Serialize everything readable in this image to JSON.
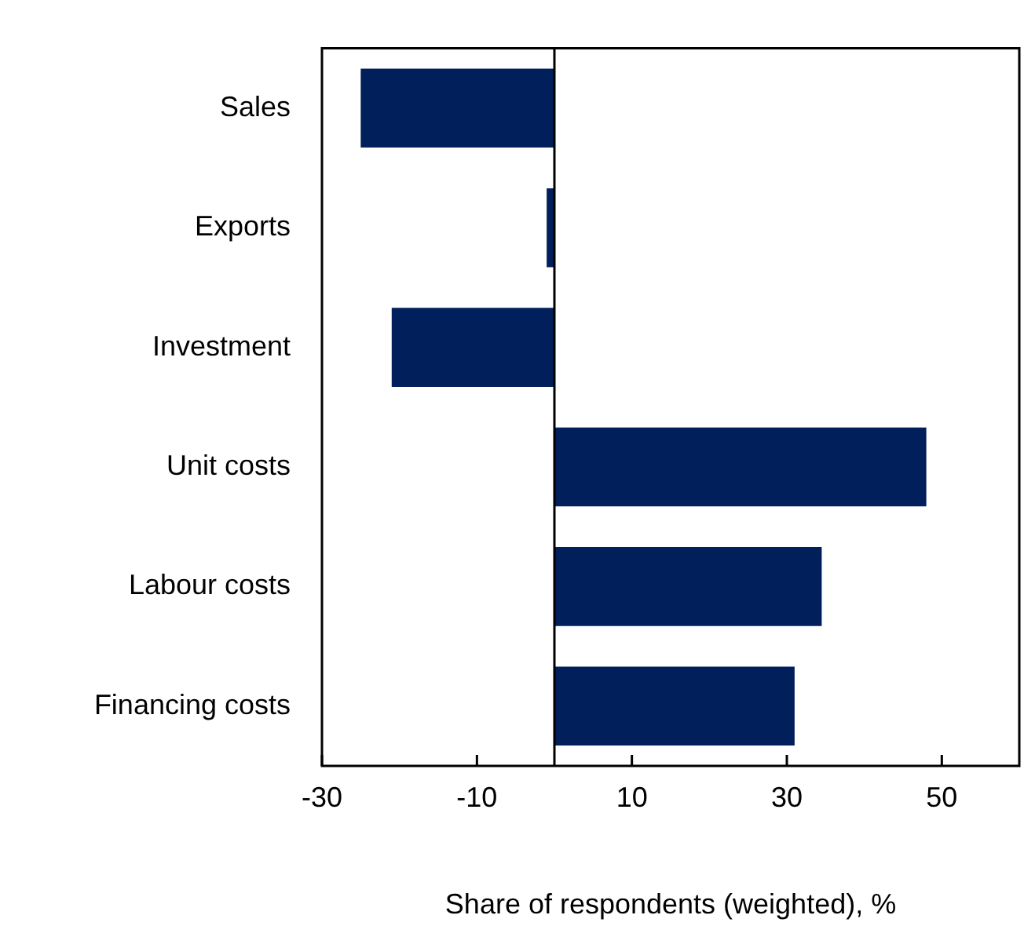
{
  "chart_data": {
    "type": "bar",
    "orientation": "horizontal",
    "xlabel": "Share of respondents (weighted), %",
    "categories": [
      "Sales",
      "Exports",
      "Investment",
      "Unit costs",
      "Labour costs",
      "Financing costs"
    ],
    "values": [
      -25,
      -1,
      -21,
      48,
      34.5,
      31
    ],
    "color": "#001f5b",
    "xlim": [
      -30,
      60
    ],
    "xticks": [
      -30,
      -10,
      10,
      30,
      50
    ],
    "grid": false,
    "legend": false
  }
}
